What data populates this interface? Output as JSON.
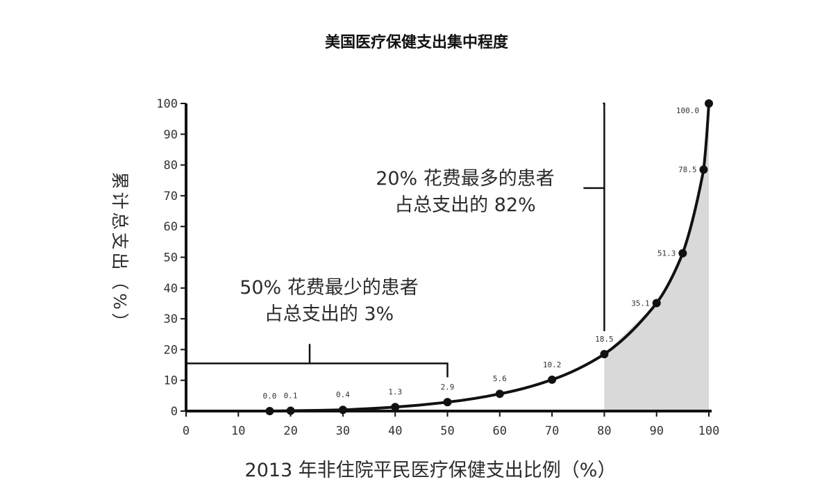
{
  "chart_data": {
    "type": "line",
    "title": "美国医疗保健支出集中程度",
    "xlabel": "2013 年非住院平民医疗保健支出比例（%）",
    "ylabel_chars": [
      "累",
      "计",
      "总",
      "支",
      "出",
      "（",
      "%",
      "）"
    ],
    "xlim": [
      0,
      100
    ],
    "ylim": [
      0,
      100
    ],
    "x_ticks": [
      "0",
      "10",
      "20",
      "30",
      "40",
      "50",
      "60",
      "70",
      "80",
      "90",
      "100"
    ],
    "y_ticks": [
      "0",
      "10",
      "20",
      "30",
      "40",
      "50",
      "60",
      "70",
      "80",
      "90",
      "100"
    ],
    "points": [
      {
        "x": 16,
        "y": 0.0,
        "label": "0.0"
      },
      {
        "x": 20,
        "y": 0.1,
        "label": "0.1"
      },
      {
        "x": 30,
        "y": 0.4,
        "label": "0.4"
      },
      {
        "x": 40,
        "y": 1.3,
        "label": "1.3"
      },
      {
        "x": 50,
        "y": 2.9,
        "label": "2.9"
      },
      {
        "x": 60,
        "y": 5.6,
        "label": "5.6"
      },
      {
        "x": 70,
        "y": 10.2,
        "label": "10.2"
      },
      {
        "x": 80,
        "y": 18.5,
        "label": "18.5"
      },
      {
        "x": 90,
        "y": 35.1,
        "label": "35.1"
      },
      {
        "x": 95,
        "y": 51.3,
        "label": "51.3"
      },
      {
        "x": 99,
        "y": 78.5,
        "label": "78.5"
      },
      {
        "x": 100,
        "y": 100.0,
        "label": "100.0"
      }
    ],
    "shaded_x_range": [
      80,
      100
    ],
    "annotations": [
      {
        "id": "top20",
        "lines": [
          "20% 花费最多的患者",
          "占总支出的 82%"
        ]
      },
      {
        "id": "bottom50",
        "lines": [
          "50% 花费最少的患者",
          "占总支出的 3%"
        ]
      }
    ],
    "colors": {
      "line": "#111111",
      "shade": "#d9d9d9",
      "axis": "#111111"
    }
  }
}
